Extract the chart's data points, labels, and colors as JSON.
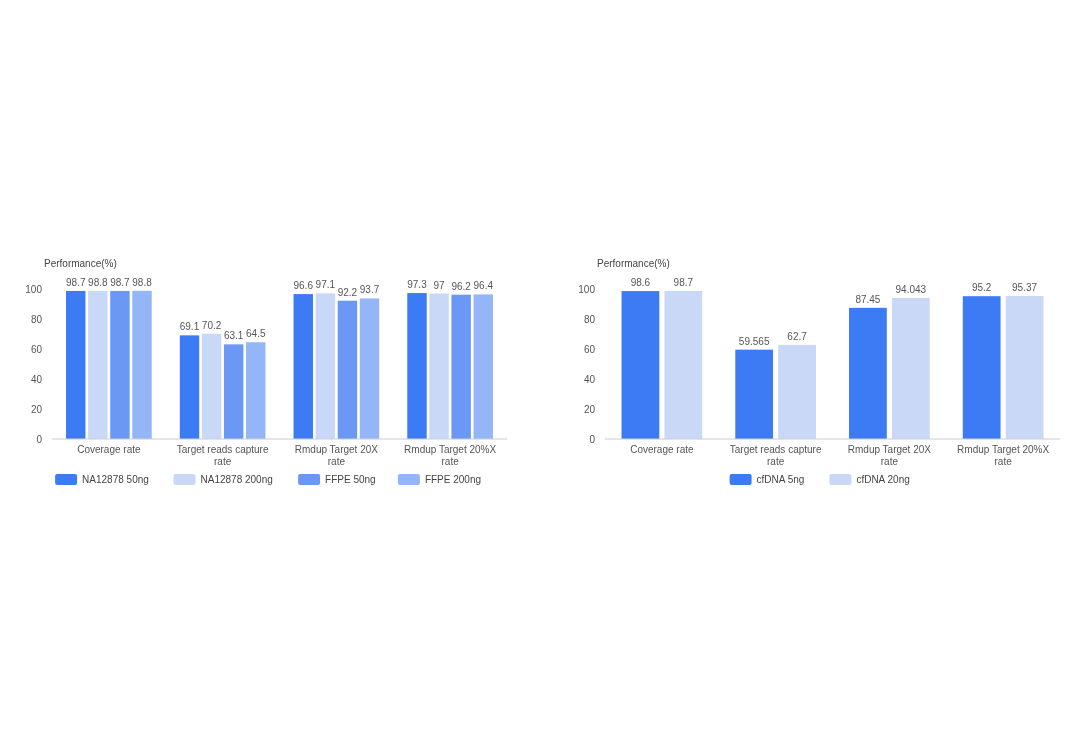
{
  "chart_data": [
    {
      "type": "bar",
      "ylabel": "Performance(%)",
      "categories": [
        "Coverage rate",
        "Target reads capture rate",
        "Rmdup Target 20X rate",
        "Rmdup Target 20%X rate"
      ],
      "ylim": [
        0,
        100
      ],
      "yticks": [
        0,
        20,
        40,
        60,
        80,
        100
      ],
      "data_labels": true,
      "legend": "bottom",
      "grid": false,
      "series": [
        {
          "name": "NA12878 50ng",
          "color": "#3d7bf5",
          "values": [
            98.7,
            69.1,
            96.6,
            97.3
          ]
        },
        {
          "name": "NA12878 200ng",
          "color": "#c9d8f7",
          "values": [
            98.8,
            70.2,
            97.1,
            97
          ]
        },
        {
          "name": "FFPE 50ng",
          "color": "#6b98f5",
          "values": [
            98.7,
            63.1,
            92.2,
            96.2
          ]
        },
        {
          "name": "FFPE 200ng",
          "color": "#94b5f7",
          "values": [
            98.8,
            64.5,
            93.7,
            96.4
          ]
        }
      ]
    },
    {
      "type": "bar",
      "ylabel": "Performance(%)",
      "categories": [
        "Coverage rate",
        "Target reads capture rate",
        "Rmdup Target 20X rate",
        "Rmdup Target 20%X rate"
      ],
      "ylim": [
        0,
        100
      ],
      "yticks": [
        0,
        20,
        40,
        60,
        80,
        100
      ],
      "data_labels": true,
      "legend": "bottom",
      "grid": false,
      "series": [
        {
          "name": "cfDNA 5ng",
          "color": "#3d7bf5",
          "values": [
            98.6,
            59.565,
            87.45,
            95.2
          ]
        },
        {
          "name": "cfDNA 20ng",
          "color": "#c9d8f7",
          "values": [
            98.7,
            62.7,
            94.043,
            95.37
          ]
        }
      ]
    }
  ]
}
